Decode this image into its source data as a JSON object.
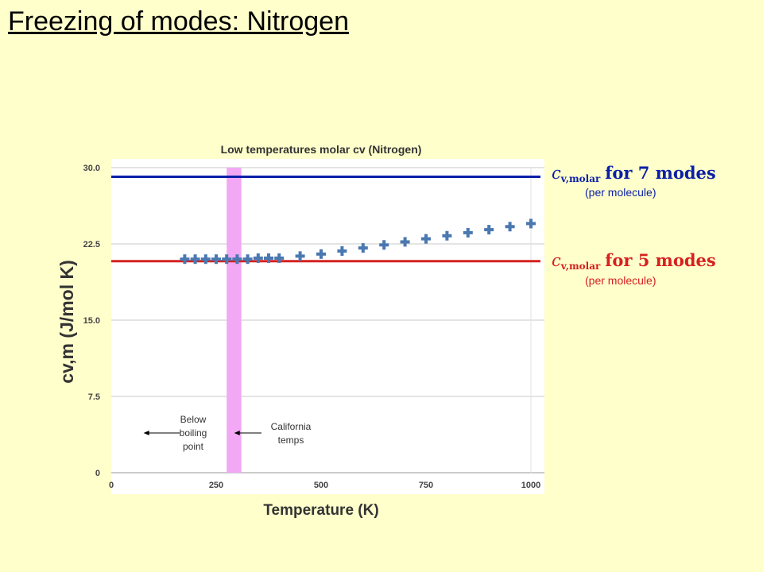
{
  "slide": {
    "title": "Freezing of modes: Nitrogen"
  },
  "chart_data": {
    "type": "scatter",
    "title": "Low temperatures molar cv (Nitrogen)",
    "xlabel": "Temperature (K)",
    "ylabel": "cv,m (J/mol K)",
    "xlim": [
      0,
      1000
    ],
    "ylim": [
      0,
      30
    ],
    "x_ticks": [
      "0",
      "250",
      "500",
      "750",
      "1000"
    ],
    "y_ticks": [
      "0",
      "7.5",
      "15.0",
      "22.5",
      "30.0"
    ],
    "grid": "horizontal",
    "series": [
      {
        "marker": "plus",
        "color": "#4a78b0",
        "x": [
          175,
          200,
          225,
          250,
          275,
          300,
          325,
          350,
          375,
          400,
          450,
          500,
          550,
          600,
          650,
          700,
          750,
          800,
          850,
          900,
          950,
          1000
        ],
        "y": [
          21.0,
          21.0,
          21.0,
          21.0,
          21.0,
          21.0,
          21.0,
          21.1,
          21.1,
          21.1,
          21.3,
          21.5,
          21.8,
          22.1,
          22.4,
          22.7,
          23.0,
          23.3,
          23.6,
          23.9,
          24.2,
          24.5
        ]
      }
    ],
    "reference_lines": [
      {
        "y": 29.1,
        "color": "#0a1fa8",
        "math": "c",
        "subscript": "v,molar",
        "suffix": "for 7 modes",
        "note": "(per molecule)"
      },
      {
        "y": 20.8,
        "color": "#d62020",
        "math": "c",
        "subscript": "v,molar",
        "suffix": "for 5 modes",
        "note": "(per molecule)"
      }
    ],
    "highlight_band": {
      "x_range": [
        275,
        310
      ],
      "color": "#f2a8f5"
    },
    "annotations": [
      {
        "text_lines": [
          "Below",
          "boiling",
          "point"
        ],
        "arrow_to_x": 77
      },
      {
        "text_lines": [
          "California",
          "temps"
        ],
        "arrow_to_x": 293
      }
    ]
  }
}
